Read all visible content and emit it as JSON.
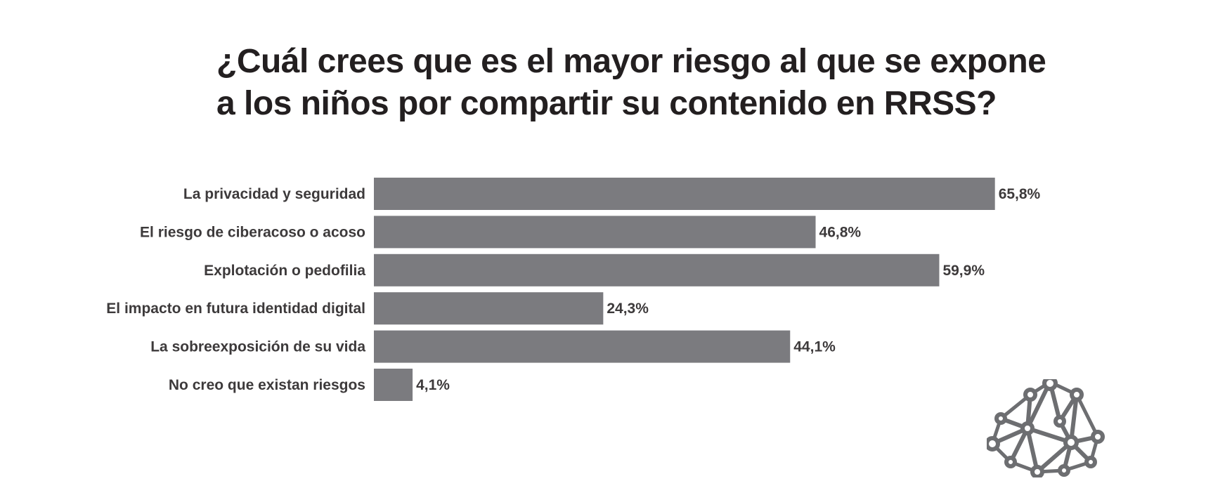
{
  "chart_data": {
    "type": "bar",
    "orientation": "horizontal",
    "title_lines": [
      "¿Cuál crees que es el mayor riesgo al que se expone",
      "a los niños por compartir su contenido en RRSS?"
    ],
    "categories": [
      "La privacidad y seguridad",
      "El riesgo de ciberacoso o acoso",
      "Explotación o pedofilia",
      "El impacto en futura identidad digital",
      "La sobreexposición de su vida",
      "No creo que existan riesgos"
    ],
    "values": [
      65.8,
      46.8,
      59.9,
      24.3,
      44.1,
      4.1
    ],
    "value_labels": [
      "65,8%",
      "46,8%",
      "59,9%",
      "24,3%",
      "44,1%",
      "4,1%"
    ],
    "unit": "%",
    "xlim": [
      0,
      100
    ],
    "xlabel": "",
    "ylabel": "",
    "grid": false,
    "legend": "none",
    "bar_color": "#7b7b7f"
  },
  "logo": {
    "icon": "network-brain-icon",
    "color": "#6d6e71"
  }
}
